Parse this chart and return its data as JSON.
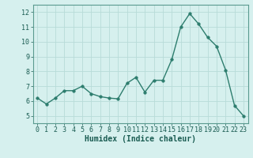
{
  "x": [
    0,
    1,
    2,
    3,
    4,
    5,
    6,
    7,
    8,
    9,
    10,
    11,
    12,
    13,
    14,
    15,
    16,
    17,
    18,
    19,
    20,
    21,
    22,
    23
  ],
  "y": [
    6.2,
    5.8,
    6.2,
    6.7,
    6.7,
    7.0,
    6.5,
    6.3,
    6.2,
    6.15,
    7.2,
    7.6,
    6.6,
    7.4,
    7.4,
    8.8,
    11.0,
    11.9,
    11.2,
    10.3,
    9.7,
    8.1,
    5.7,
    5.0
  ],
  "line_color": "#2d7d6e",
  "marker_color": "#2d7d6e",
  "bg_color": "#d6f0ee",
  "grid_color": "#b8dbd8",
  "xlabel": "Humidex (Indice chaleur)",
  "ylim": [
    4.5,
    12.5
  ],
  "xlim": [
    -0.5,
    23.5
  ],
  "yticks": [
    5,
    6,
    7,
    8,
    9,
    10,
    11,
    12
  ],
  "xticks": [
    0,
    1,
    2,
    3,
    4,
    5,
    6,
    7,
    8,
    9,
    10,
    11,
    12,
    13,
    14,
    15,
    16,
    17,
    18,
    19,
    20,
    21,
    22,
    23
  ],
  "tick_label_fontsize": 6.0,
  "xlabel_fontsize": 7.0,
  "line_width": 1.0,
  "marker_size": 2.5
}
